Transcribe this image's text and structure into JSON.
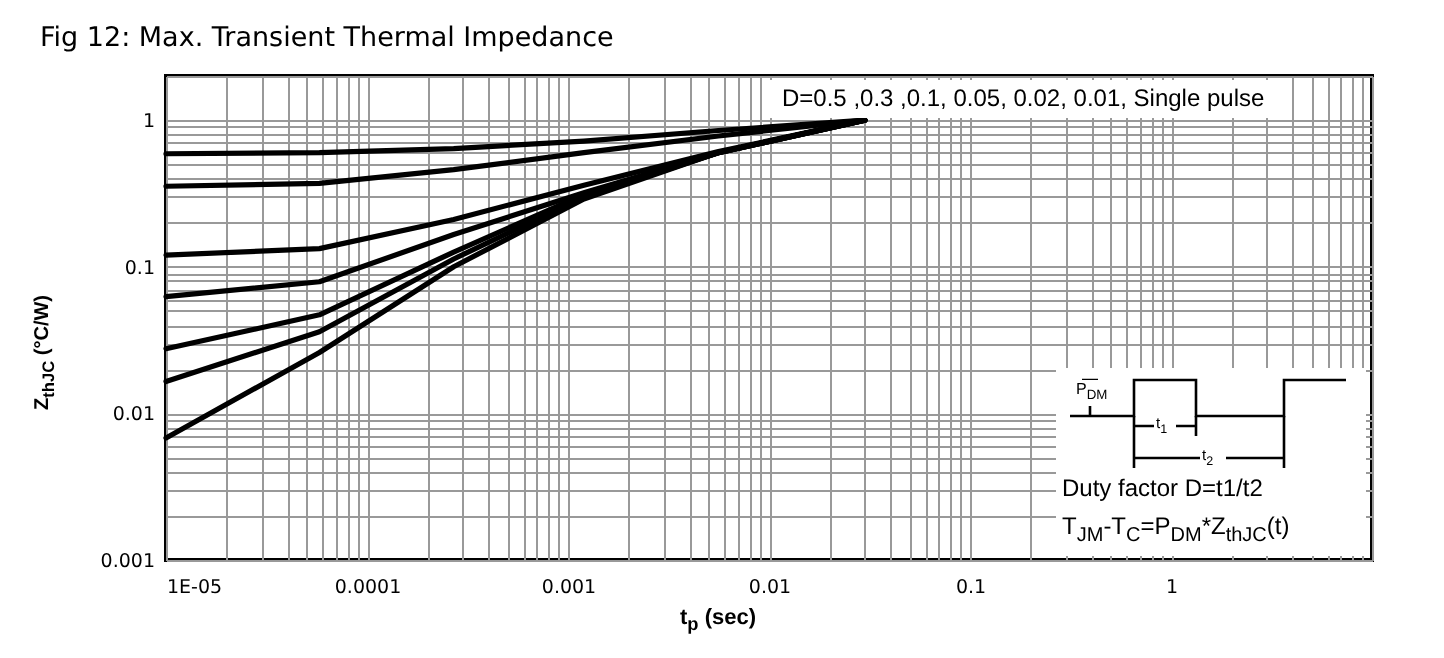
{
  "chart_data": {
    "type": "line",
    "title": "Fig 12: Max. Transient Thermal Impedance",
    "xlabel": "t$_{p}$ (sec)",
    "ylabel": "Z$_{thJC}$ (°C/W)",
    "log": "xy",
    "grid": true,
    "legend": false,
    "line_style": "solid",
    "marker": "none",
    "xlim": [
      1e-05,
      10
    ],
    "ylim": [
      0.001,
      2
    ],
    "xticks": [
      {
        "value": 1e-05,
        "label": "1E-05"
      },
      0.0001,
      0.001,
      0.01,
      0.1,
      1
    ],
    "yticks": [
      0.001,
      0.01,
      0.1,
      1
    ],
    "annotations": [
      "D=0.5 ,0.3 ,0.1, 0.05, 0.02, 0.01,  Single pulse",
      "P$_{DM}$",
      "t$_{1}$",
      "t$_{2}$",
      "Duty factor D=t1/t2",
      "T$_{JM}$-T$_{C}$=P$_{DM}$*Z$_{thJC}$(t)"
    ],
    "x": [
      1e-05,
      5.8e-05,
      0.00027,
      0.0012,
      0.0056,
      0.03
    ],
    "series": [
      {
        "color": "#000000",
        "values": [
          0.59,
          0.6,
          0.64,
          0.72,
          0.85,
          1
        ]
      },
      {
        "color": "#000000",
        "values": [
          0.354,
          0.37,
          0.46,
          0.6,
          0.78,
          1
        ]
      },
      {
        "color": "#000000",
        "values": [
          0.12,
          0.133,
          0.21,
          0.36,
          0.61,
          1
        ]
      },
      {
        "color": "#000000",
        "values": [
          0.0625,
          0.079,
          0.166,
          0.32,
          0.6,
          1
        ]
      },
      {
        "color": "#000000",
        "values": [
          0.0276,
          0.047,
          0.126,
          0.31,
          0.6,
          1
        ]
      },
      {
        "color": "#000000",
        "values": [
          0.0165,
          0.036,
          0.113,
          0.3,
          0.6,
          1
        ]
      },
      {
        "color": "#000000",
        "values": [
          0.0068,
          0.026,
          0.1,
          0.29,
          0.6,
          1
        ]
      }
    ]
  }
}
